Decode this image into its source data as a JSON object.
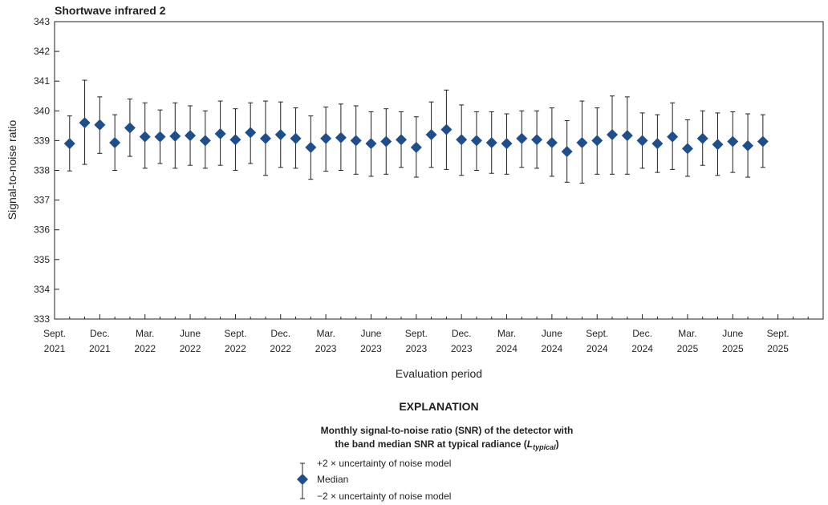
{
  "chart_data": {
    "type": "scatter",
    "title": "Shortwave infrared 2",
    "xlabel": "Evaluation period",
    "ylabel": "Signal-to-noise ratio",
    "ylim": [
      333,
      343
    ],
    "yticks": [
      "333",
      "334",
      "335",
      "336",
      "337",
      "338",
      "339",
      "340",
      "341",
      "342",
      "343"
    ],
    "x_tick_labels": [
      [
        "Sept.",
        "2021"
      ],
      [
        "Dec.",
        "2021"
      ],
      [
        "Mar.",
        "2022"
      ],
      [
        "June",
        "2022"
      ],
      [
        "Sept.",
        "2022"
      ],
      [
        "Dec.",
        "2022"
      ],
      [
        "Mar.",
        "2023"
      ],
      [
        "June",
        "2023"
      ],
      [
        "Sept.",
        "2023"
      ],
      [
        "Dec.",
        "2023"
      ],
      [
        "Mar.",
        "2024"
      ],
      [
        "June",
        "2024"
      ],
      [
        "Sept.",
        "2024"
      ],
      [
        "Dec.",
        "2024"
      ],
      [
        "Mar.",
        "2025"
      ],
      [
        "June",
        "2025"
      ],
      [
        "Sept.",
        "2025"
      ]
    ],
    "x_start": "2021-09",
    "x_end": "2025-12",
    "series": [
      {
        "name": "Median",
        "color": "#1f4e8c",
        "points": [
          {
            "x": "2021-10",
            "median": 338.9,
            "upper": 339.83,
            "lower": 337.98
          },
          {
            "x": "2021-11",
            "median": 339.6,
            "upper": 341.03,
            "lower": 338.2
          },
          {
            "x": "2021-12",
            "median": 339.53,
            "upper": 340.47,
            "lower": 338.57
          },
          {
            "x": "2022-01",
            "median": 338.93,
            "upper": 339.87,
            "lower": 338.0
          },
          {
            "x": "2022-02",
            "median": 339.43,
            "upper": 340.4,
            "lower": 338.47
          },
          {
            "x": "2022-03",
            "median": 339.13,
            "upper": 340.27,
            "lower": 338.07
          },
          {
            "x": "2022-04",
            "median": 339.13,
            "upper": 340.03,
            "lower": 338.23
          },
          {
            "x": "2022-05",
            "median": 339.15,
            "upper": 340.27,
            "lower": 338.07
          },
          {
            "x": "2022-06",
            "median": 339.17,
            "upper": 340.17,
            "lower": 338.17
          },
          {
            "x": "2022-07",
            "median": 339.0,
            "upper": 340.0,
            "lower": 338.07
          },
          {
            "x": "2022-08",
            "median": 339.23,
            "upper": 340.33,
            "lower": 338.17
          },
          {
            "x": "2022-09",
            "median": 339.03,
            "upper": 340.07,
            "lower": 338.0
          },
          {
            "x": "2022-10",
            "median": 339.27,
            "upper": 340.27,
            "lower": 338.23
          },
          {
            "x": "2022-11",
            "median": 339.07,
            "upper": 340.33,
            "lower": 337.83
          },
          {
            "x": "2022-12",
            "median": 339.2,
            "upper": 340.3,
            "lower": 338.1
          },
          {
            "x": "2023-01",
            "median": 339.07,
            "upper": 340.1,
            "lower": 338.07
          },
          {
            "x": "2023-02",
            "median": 338.77,
            "upper": 339.83,
            "lower": 337.7
          },
          {
            "x": "2023-03",
            "median": 339.07,
            "upper": 340.13,
            "lower": 337.97
          },
          {
            "x": "2023-04",
            "median": 339.1,
            "upper": 340.23,
            "lower": 338.0
          },
          {
            "x": "2023-05",
            "median": 339.0,
            "upper": 340.17,
            "lower": 337.87
          },
          {
            "x": "2023-06",
            "median": 338.9,
            "upper": 339.97,
            "lower": 337.8
          },
          {
            "x": "2023-07",
            "median": 338.97,
            "upper": 340.07,
            "lower": 337.87
          },
          {
            "x": "2023-08",
            "median": 339.03,
            "upper": 339.97,
            "lower": 338.1
          },
          {
            "x": "2023-09",
            "median": 338.77,
            "upper": 339.8,
            "lower": 337.77
          },
          {
            "x": "2023-10",
            "median": 339.2,
            "upper": 340.3,
            "lower": 338.1
          },
          {
            "x": "2023-11",
            "median": 339.37,
            "upper": 340.7,
            "lower": 338.03
          },
          {
            "x": "2023-12",
            "median": 339.03,
            "upper": 340.2,
            "lower": 337.83
          },
          {
            "x": "2024-01",
            "median": 339.0,
            "upper": 339.97,
            "lower": 338.0
          },
          {
            "x": "2024-02",
            "median": 338.93,
            "upper": 339.97,
            "lower": 337.9
          },
          {
            "x": "2024-03",
            "median": 338.9,
            "upper": 339.9,
            "lower": 337.87
          },
          {
            "x": "2024-04",
            "median": 339.07,
            "upper": 340.0,
            "lower": 338.1
          },
          {
            "x": "2024-05",
            "median": 339.03,
            "upper": 340.0,
            "lower": 338.07
          },
          {
            "x": "2024-06",
            "median": 338.93,
            "upper": 340.1,
            "lower": 337.8
          },
          {
            "x": "2024-07",
            "median": 338.63,
            "upper": 339.67,
            "lower": 337.6
          },
          {
            "x": "2024-08",
            "median": 338.93,
            "upper": 340.33,
            "lower": 337.57
          },
          {
            "x": "2024-09",
            "median": 339.0,
            "upper": 340.1,
            "lower": 337.87
          },
          {
            "x": "2024-10",
            "median": 339.2,
            "upper": 340.5,
            "lower": 337.87
          },
          {
            "x": "2024-11",
            "median": 339.17,
            "upper": 340.47,
            "lower": 337.87
          },
          {
            "x": "2024-12",
            "median": 339.0,
            "upper": 339.93,
            "lower": 338.07
          },
          {
            "x": "2025-01",
            "median": 338.9,
            "upper": 339.87,
            "lower": 337.93
          },
          {
            "x": "2025-02",
            "median": 339.13,
            "upper": 340.27,
            "lower": 338.03
          },
          {
            "x": "2025-03",
            "median": 338.73,
            "upper": 339.7,
            "lower": 337.8
          },
          {
            "x": "2025-04",
            "median": 339.07,
            "upper": 340.0,
            "lower": 338.17
          },
          {
            "x": "2025-05",
            "median": 338.87,
            "upper": 339.93,
            "lower": 337.83
          },
          {
            "x": "2025-06",
            "median": 338.97,
            "upper": 339.97,
            "lower": 337.93
          },
          {
            "x": "2025-07",
            "median": 338.83,
            "upper": 339.9,
            "lower": 337.77
          },
          {
            "x": "2025-08",
            "median": 338.97,
            "upper": 339.87,
            "lower": 338.1
          }
        ]
      }
    ],
    "grid": false,
    "legend_position": "below"
  },
  "explanation": {
    "heading": "EXPLANATION",
    "description_line1": "Monthly signal-to-noise ratio (SNR) of the detector with",
    "description_line2_prefix": "the band median SNR at typical radiance (",
    "description_symbol": "L",
    "description_subscript": "typical",
    "description_line2_suffix": ")",
    "upper_label": "+2 × uncertainty of noise model",
    "median_label": "Median",
    "lower_label": "−2 × uncertainty of noise model"
  }
}
